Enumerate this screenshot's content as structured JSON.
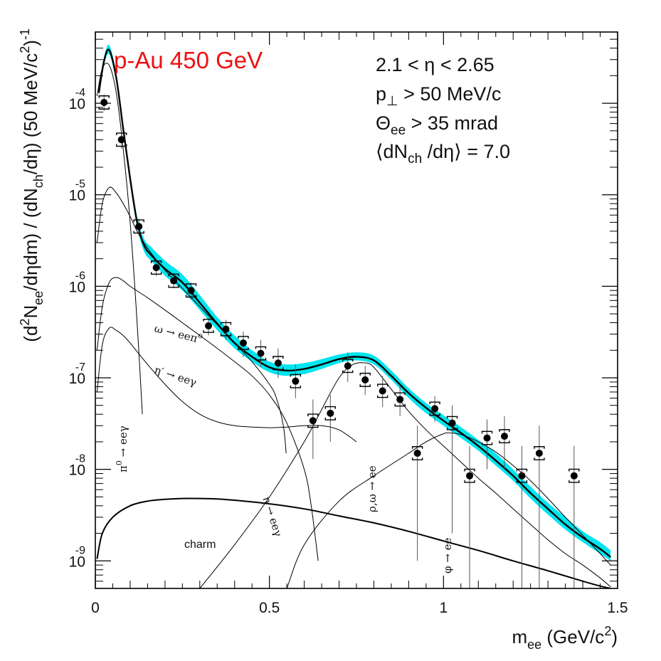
{
  "chart_data": {
    "type": "line",
    "title": "p-Au 450 GeV",
    "colors": {
      "title": "#ee1111",
      "band": "#00e5ee",
      "lines": "#000000",
      "points": "#000000"
    },
    "xlabel": {
      "main": "m",
      "sub": "ee",
      "units": " (GeV/c",
      "sup": "2",
      "close": ")"
    },
    "ylabel": {
      "p1": "(d",
      "p1sup": "2",
      "p2": "N",
      "p2sub": "ee",
      "p3": "/dηdm) / (dN",
      "p3sub": "ch",
      "p4": "/dη) (50 MeV/c",
      "p4sup": "2",
      "p5": ")",
      "p5sup": "-1"
    },
    "xlim": [
      0,
      1.5
    ],
    "ylim": [
      5e-10,
      0.0006
    ],
    "yscale": "log",
    "x_ticks": [
      {
        "value": 0,
        "label": "0"
      },
      {
        "value": 0.5,
        "label": "0.5"
      },
      {
        "value": 1,
        "label": "1"
      },
      {
        "value": 1.5,
        "label": "1.5"
      }
    ],
    "y_ticks": [
      {
        "value": 0.0001,
        "base": "10",
        "exp": "-4"
      },
      {
        "value": 1e-05,
        "base": "10",
        "exp": "-5"
      },
      {
        "value": 1e-06,
        "base": "10",
        "exp": "-6"
      },
      {
        "value": 1e-07,
        "base": "10",
        "exp": "-7"
      },
      {
        "value": 1e-08,
        "base": "10",
        "exp": "-8"
      },
      {
        "value": 1e-09,
        "base": "10",
        "exp": "-9"
      }
    ],
    "info": [
      {
        "text": "2.1 < η < 2.65"
      },
      {
        "text": "p",
        "sub": "⊥",
        "rest": " > 50 MeV/c"
      },
      {
        "text": "Θ",
        "sub": "ee",
        "rest": " > 35 mrad"
      },
      {
        "text": "⟨dN",
        "sub": "ch",
        "rest": " /dη⟩ = 7.0"
      }
    ],
    "annotations": {
      "omega": "ω → eeπ",
      "omega_sup": "o",
      "etaprime": "η′ → eeγ",
      "pi0": "π",
      "pi0_sup": "0",
      "pi0_rest": " → eeγ",
      "eta": "η → eeγ",
      "rho": "ρ,ω → ee",
      "phi": "φ → ee",
      "charm": "charm"
    },
    "data_points": [
      {
        "x": 0.025,
        "y": 0.000102,
        "y_low": 8.2e-05,
        "y_high": 0.000125
      },
      {
        "x": 0.075,
        "y": 4e-05,
        "y_low": 3.2e-05,
        "y_high": 5e-05
      },
      {
        "x": 0.125,
        "y": 4.5e-06,
        "y_low": 3.6e-06,
        "y_high": 5.5e-06
      },
      {
        "x": 0.175,
        "y": 1.6e-06,
        "y_low": 1.3e-06,
        "y_high": 2e-06
      },
      {
        "x": 0.225,
        "y": 1.15e-06,
        "y_low": 9.5e-07,
        "y_high": 1.4e-06
      },
      {
        "x": 0.275,
        "y": 9e-07,
        "y_low": 7.2e-07,
        "y_high": 1.1e-06
      },
      {
        "x": 0.325,
        "y": 3.7e-07,
        "y_low": 2.9e-07,
        "y_high": 4.5e-07
      },
      {
        "x": 0.375,
        "y": 3.4e-07,
        "y_low": 2.6e-07,
        "y_high": 4.3e-07
      },
      {
        "x": 0.425,
        "y": 2.4e-07,
        "y_low": 1.7e-07,
        "y_high": 3.2e-07
      },
      {
        "x": 0.475,
        "y": 1.85e-07,
        "y_low": 1.3e-07,
        "y_high": 2.6e-07
      },
      {
        "x": 0.525,
        "y": 1.45e-07,
        "y_low": 1e-07,
        "y_high": 2.1e-07
      },
      {
        "x": 0.575,
        "y": 9.2e-08,
        "y_low": 6e-08,
        "y_high": 1.4e-07
      },
      {
        "x": 0.625,
        "y": 3.4e-08,
        "y_low": 1.3e-08,
        "y_high": 5.8e-08
      },
      {
        "x": 0.675,
        "y": 4.1e-08,
        "y_low": 2e-08,
        "y_high": 6.5e-08
      },
      {
        "x": 0.725,
        "y": 1.35e-07,
        "y_low": 9e-08,
        "y_high": 1.9e-07
      },
      {
        "x": 0.775,
        "y": 9.5e-08,
        "y_low": 6.5e-08,
        "y_high": 1.35e-07
      },
      {
        "x": 0.825,
        "y": 7.2e-08,
        "y_low": 4.8e-08,
        "y_high": 1.05e-07
      },
      {
        "x": 0.875,
        "y": 5.8e-08,
        "y_low": 3.8e-08,
        "y_high": 8.3e-08
      },
      {
        "x": 0.925,
        "y": 1.5e-08,
        "y_low": 1e-09,
        "y_high": 3e-08
      },
      {
        "x": 0.975,
        "y": 4.6e-08,
        "y_low": 3.3e-08,
        "y_high": 6.3e-08
      },
      {
        "x": 1.025,
        "y": 3.2e-08,
        "y_low": 2e-09,
        "y_high": 5e-08
      },
      {
        "x": 1.075,
        "y": 8.5e-09,
        "y_low": 5e-10,
        "y_high": 1.8e-08
      },
      {
        "x": 1.125,
        "y": 2.2e-08,
        "y_low": 1e-08,
        "y_high": 3.5e-08
      },
      {
        "x": 1.175,
        "y": 2.3e-08,
        "y_low": 1e-08,
        "y_high": 3.8e-08
      },
      {
        "x": 1.225,
        "y": 8.5e-09,
        "y_low": 5e-10,
        "y_high": 1.8e-08
      },
      {
        "x": 1.275,
        "y": 1.5e-08,
        "y_low": 5e-10,
        "y_high": 3e-08
      },
      {
        "x": 1.375,
        "y": 8.5e-09,
        "y_low": 5e-10,
        "y_high": 1.8e-08
      }
    ],
    "band": {
      "x": [
        0.01,
        0.025,
        0.04,
        0.06,
        0.08,
        0.1,
        0.12,
        0.14,
        0.16,
        0.2,
        0.25,
        0.3,
        0.35,
        0.4,
        0.45,
        0.5,
        0.55,
        0.6,
        0.65,
        0.7,
        0.75,
        0.8,
        0.85,
        0.9,
        0.95,
        1.0,
        1.05,
        1.1,
        1.15,
        1.2,
        1.25,
        1.3,
        1.35,
        1.4,
        1.45,
        1.48
      ],
      "lower": [
        0.00012,
        0.00026,
        0.00034,
        0.00017,
        4.8e-05,
        1.35e-05,
        4.5e-06,
        2.4e-06,
        1.9e-06,
        1.3e-06,
        9e-07,
        5.5e-07,
        3.3e-07,
        2.1e-07,
        1.5e-07,
        1.15e-07,
        1.05e-07,
        1.1e-07,
        1.25e-07,
        1.45e-07,
        1.55e-07,
        1.4e-07,
        9.5e-08,
        6e-08,
        4.1e-08,
        3e-08,
        2.2e-08,
        1.6e-08,
        1.1e-08,
        7.5e-09,
        4.8e-09,
        3.2e-09,
        2.2e-09,
        1.6e-09,
        1.2e-09,
        1e-09
      ],
      "upper": [
        0.00015,
        0.00032,
        0.00043,
        0.00021,
        6e-05,
        1.7e-05,
        5.8e-06,
        3.3e-06,
        2.7e-06,
        1.9e-06,
        1.35e-06,
        8e-07,
        4.6e-07,
        2.9e-07,
        2e-07,
        1.5e-07,
        1.4e-07,
        1.45e-07,
        1.6e-07,
        1.8e-07,
        1.9e-07,
        1.75e-07,
        1.2e-07,
        7.7e-08,
        5.3e-08,
        3.9e-08,
        2.9e-08,
        2.1e-08,
        1.5e-08,
        1e-08,
        6.5e-09,
        4.3e-09,
        3e-09,
        2.1e-09,
        1.6e-09,
        1.3e-09
      ]
    },
    "series": [
      {
        "name": "total",
        "x": [
          0.01,
          0.025,
          0.04,
          0.06,
          0.08,
          0.1,
          0.12,
          0.14,
          0.16,
          0.2,
          0.25,
          0.3,
          0.35,
          0.4,
          0.45,
          0.5,
          0.55,
          0.6,
          0.65,
          0.7,
          0.75,
          0.8,
          0.85,
          0.9,
          0.95,
          1.0,
          1.05,
          1.1,
          1.15,
          1.2,
          1.25,
          1.3,
          1.35,
          1.4,
          1.45,
          1.48
        ],
        "y": [
          0.00013,
          0.00029,
          0.00038,
          0.00019,
          5.3e-05,
          1.5e-05,
          5e-06,
          2.8e-06,
          2.2e-06,
          1.55e-06,
          1.1e-06,
          6.6e-07,
          3.9e-07,
          2.4e-07,
          1.7e-07,
          1.3e-07,
          1.2e-07,
          1.25e-07,
          1.4e-07,
          1.6e-07,
          1.7e-07,
          1.55e-07,
          1.05e-07,
          6.8e-08,
          4.7e-08,
          3.4e-08,
          2.5e-08,
          1.8e-08,
          1.25e-08,
          8.5e-09,
          5.5e-09,
          3.7e-09,
          2.5e-09,
          1.8e-09,
          1.35e-09,
          1.1e-09
        ],
        "width": 2.4
      },
      {
        "name": "pi0-dalitz",
        "x": [
          0.005,
          0.02,
          0.04,
          0.06,
          0.08,
          0.1,
          0.12,
          0.135
        ],
        "y": [
          0.00012,
          0.00024,
          0.00026,
          0.00013,
          3.2e-05,
          5e-06,
          4e-07,
          4e-08
        ],
        "width": 1
      },
      {
        "name": "eta-dalitz",
        "x": [
          0.005,
          0.02,
          0.04,
          0.06,
          0.08,
          0.1,
          0.12,
          0.15,
          0.2,
          0.25,
          0.3,
          0.35,
          0.4,
          0.45,
          0.5,
          0.52,
          0.54,
          0.548
        ],
        "y": [
          3e-06,
          8e-06,
          1.2e-05,
          1.05e-05,
          8e-06,
          5.8e-06,
          4e-06,
          2.6e-06,
          1.5e-06,
          9.5e-07,
          6e-07,
          3.8e-07,
          2.4e-07,
          1.5e-07,
          8.5e-08,
          6e-08,
          3e-08,
          1.5e-08
        ],
        "width": 1
      },
      {
        "name": "omega-dalitz",
        "x": [
          0.005,
          0.02,
          0.04,
          0.06,
          0.08,
          0.1,
          0.15,
          0.2,
          0.25,
          0.3,
          0.35,
          0.4,
          0.45,
          0.5,
          0.55,
          0.6,
          0.62,
          0.64
        ],
        "y": [
          2e-07,
          6e-07,
          1.1e-06,
          1.25e-06,
          1.15e-06,
          1e-06,
          7.5e-07,
          5.5e-07,
          4e-07,
          2.9e-07,
          2.1e-07,
          1.5e-07,
          1.05e-07,
          6.5e-08,
          3.2e-08,
          1e-08,
          4e-09,
          1e-09
        ],
        "width": 1
      },
      {
        "name": "etaprime-dalitz",
        "x": [
          0.005,
          0.02,
          0.04,
          0.06,
          0.08,
          0.1,
          0.15,
          0.2,
          0.25,
          0.3,
          0.35,
          0.4,
          0.45,
          0.5,
          0.55,
          0.6,
          0.65,
          0.7,
          0.75
        ],
        "y": [
          7e-08,
          2.3e-07,
          3.5e-07,
          3.3e-07,
          2.9e-07,
          2.4e-07,
          1.4e-07,
          8.5e-08,
          5.5e-08,
          4e-08,
          3.3e-08,
          3e-08,
          2.9e-08,
          2.85e-08,
          2.9e-08,
          3e-08,
          3e-08,
          2.7e-08,
          2e-08
        ],
        "width": 1
      },
      {
        "name": "rho-omega-ee",
        "x": [
          0.3,
          0.4,
          0.5,
          0.6,
          0.65,
          0.7,
          0.74,
          0.78,
          0.8,
          0.82,
          0.85,
          0.9,
          0.95,
          1.0,
          1.05,
          1.1,
          1.15,
          1.2,
          1.25,
          1.3,
          1.35,
          1.4,
          1.45,
          1.48
        ],
        "y": [
          5e-10,
          1.5e-09,
          5e-09,
          2e-08,
          4.5e-08,
          1e-07,
          1.4e-07,
          1.45e-07,
          1.3e-07,
          1.05e-07,
          7.5e-08,
          4.3e-08,
          2.7e-08,
          1.8e-08,
          1.2e-08,
          8e-09,
          5.5e-09,
          3.7e-09,
          2.5e-09,
          1.7e-09,
          1.2e-09,
          9e-10,
          6.5e-10,
          5.2e-10
        ],
        "width": 1
      },
      {
        "name": "phi-ee",
        "x": [
          0.55,
          0.6,
          0.7,
          0.8,
          0.9,
          0.95,
          1.0,
          1.02,
          1.05,
          1.1,
          1.15,
          1.2,
          1.25,
          1.3,
          1.35,
          1.4,
          1.45,
          1.48
        ],
        "y": [
          5e-10,
          1.5e-09,
          4.5e-09,
          8.5e-09,
          1.5e-08,
          2e-08,
          2.45e-08,
          2.5e-08,
          2.4e-08,
          2e-08,
          1.55e-08,
          1.1e-08,
          7.5e-09,
          4.8e-09,
          3e-09,
          1.9e-09,
          1.2e-09,
          9e-10
        ],
        "width": 1
      },
      {
        "name": "charm",
        "x": [
          0.005,
          0.02,
          0.05,
          0.1,
          0.15,
          0.2,
          0.25,
          0.3,
          0.35,
          0.4,
          0.5,
          0.6,
          0.7,
          0.8,
          0.9,
          1.0,
          1.1,
          1.2,
          1.3,
          1.4,
          1.45,
          1.48
        ],
        "y": [
          1.05e-09,
          2e-09,
          3e-09,
          4e-09,
          4.5e-09,
          4.7e-09,
          4.8e-09,
          4.8e-09,
          4.75e-09,
          4.6e-09,
          4.2e-09,
          3.7e-09,
          3.1e-09,
          2.6e-09,
          2.1e-09,
          1.65e-09,
          1.3e-09,
          1e-09,
          7.8e-10,
          6e-10,
          5.3e-10,
          5e-10
        ],
        "width": 2
      }
    ]
  }
}
